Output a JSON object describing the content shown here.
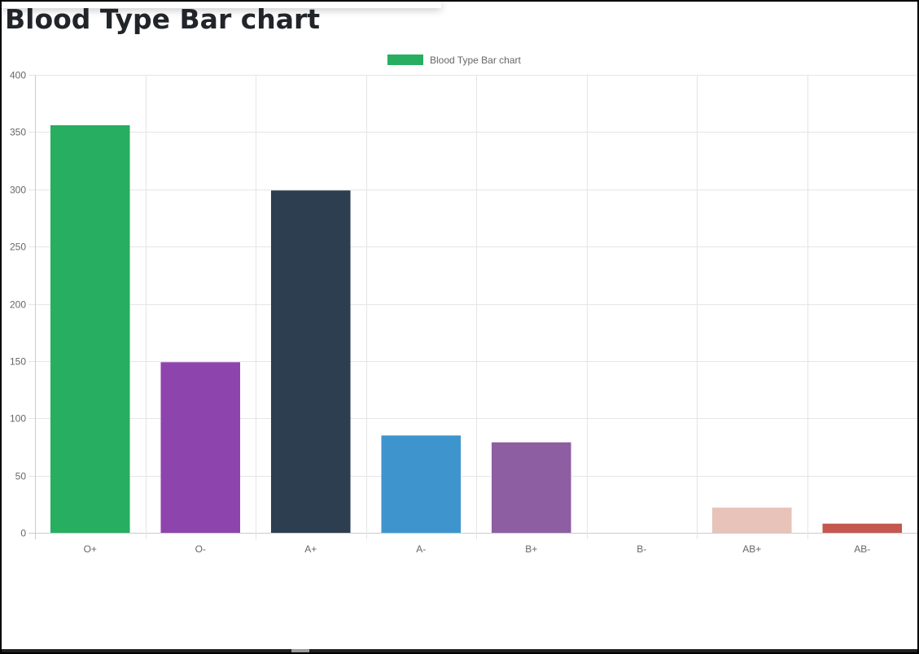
{
  "page": {
    "title": "Blood Type Bar chart"
  },
  "chart_data": {
    "type": "bar",
    "title": "",
    "categories": [
      "O+",
      "O-",
      "A+",
      "A-",
      "B+",
      "B-",
      "AB+",
      "AB-"
    ],
    "series": [
      {
        "name": "Blood Type Bar chart",
        "values": [
          356,
          149,
          299,
          85,
          79,
          0,
          22,
          8
        ],
        "colors": [
          "#27ae60",
          "#8e44ad",
          "#2c3e50",
          "#3e95cd",
          "#8e5ea2",
          "#3cba9f",
          "#e8c3b9",
          "#c45850"
        ]
      }
    ],
    "legend_color": "#27ae60",
    "yticks": [
      0,
      50,
      100,
      150,
      200,
      250,
      300,
      350,
      400
    ],
    "ylim": [
      0,
      400
    ],
    "xlabel": "",
    "ylabel": "",
    "grid": true,
    "legend_position": "top"
  }
}
